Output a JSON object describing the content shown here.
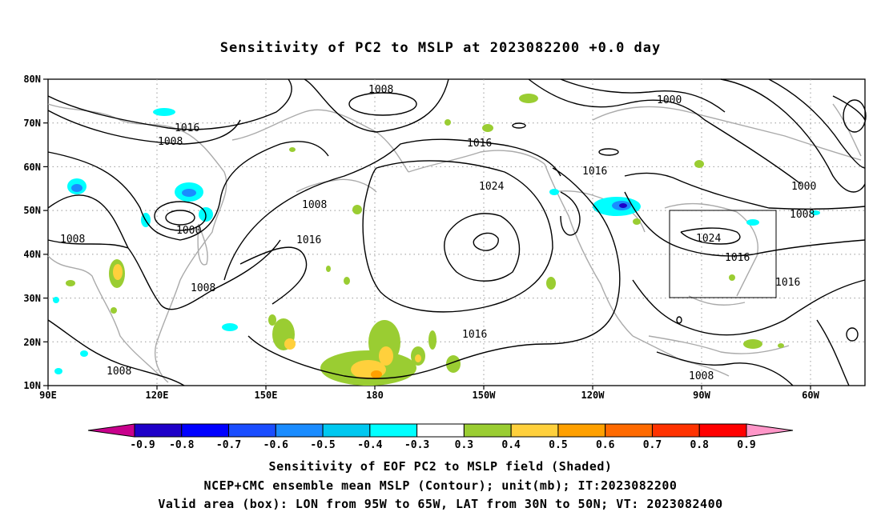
{
  "title": "Sensitivity of PC2 to MSLP at 2023082200 +0.0 day",
  "lat_labels": [
    "80N",
    "70N",
    "60N",
    "50N",
    "40N",
    "30N",
    "20N",
    "10N"
  ],
  "lon_labels": [
    "90E",
    "120E",
    "150E",
    "180",
    "150W",
    "120W",
    "90W",
    "60W"
  ],
  "colorbar": {
    "labels": [
      "-0.9",
      "-0.8",
      "-0.7",
      "-0.6",
      "-0.5",
      "-0.4",
      "-0.3",
      "0.3",
      "0.4",
      "0.5",
      "0.6",
      "0.7",
      "0.8",
      "0.9"
    ],
    "colors": [
      "#c8008c",
      "#1e00c8",
      "#0000ff",
      "#1a4dff",
      "#1a8cff",
      "#00c8f0",
      "#00ffff",
      "#ffffff",
      "#9acd32",
      "#ffd03c",
      "#ffa000",
      "#ff6a00",
      "#ff3200",
      "#ff0000",
      "#ff96c8"
    ]
  },
  "contour_labels": [
    {
      "text": "1008"
    },
    {
      "text": "1016"
    },
    {
      "text": "1008"
    },
    {
      "text": "1000"
    },
    {
      "text": "1008"
    },
    {
      "text": "1008"
    },
    {
      "text": "1008"
    },
    {
      "text": "1016"
    },
    {
      "text": "1008"
    },
    {
      "text": "1016"
    },
    {
      "text": "1024"
    },
    {
      "text": "1016"
    },
    {
      "text": "1016"
    },
    {
      "text": "1000"
    },
    {
      "text": "1000"
    },
    {
      "text": "1008"
    },
    {
      "text": "1024"
    },
    {
      "text": "1016"
    },
    {
      "text": "1016"
    },
    {
      "text": "1008"
    }
  ],
  "box": {
    "lon_range": "95W to 65W",
    "lat_range": "30N to 50N"
  },
  "captions": {
    "line1": "Sensitivity of EOF PC2 to MSLP field (Shaded)",
    "line2": "NCEP+CMC ensemble mean MSLP (Contour); unit(mb); IT:2023082200",
    "line3": "Valid area (box): LON from 95W to 65W, LAT from 30N to 50N; VT: 2023082400"
  }
}
